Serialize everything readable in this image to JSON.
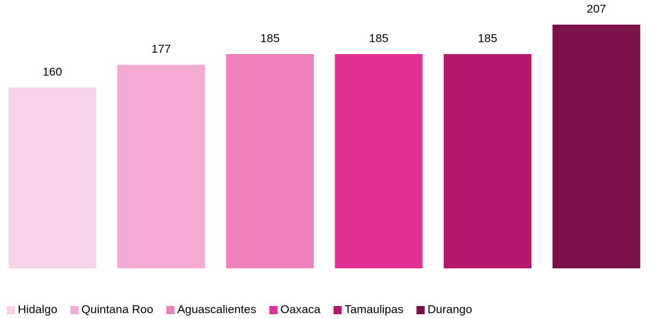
{
  "chart_data": {
    "type": "bar",
    "series": [
      {
        "name": "Hidalgo",
        "color": "#f9d3e8",
        "values": [
          160
        ]
      },
      {
        "name": "Quintana Roo",
        "color": "#f3abd3",
        "values": [
          177
        ]
      },
      {
        "name": "Aguascalientes",
        "color": "#ee80bc",
        "values": [
          185
        ]
      },
      {
        "name": "Oaxaca",
        "color": "#e33093",
        "values": [
          185
        ]
      },
      {
        "name": "Tamaulipas",
        "color": "#b5186e",
        "values": [
          185
        ]
      },
      {
        "name": "Durango",
        "color": "#7a1149",
        "values": [
          207
        ]
      }
    ],
    "ylim": [
      25,
      215
    ],
    "legend": "bottom"
  }
}
